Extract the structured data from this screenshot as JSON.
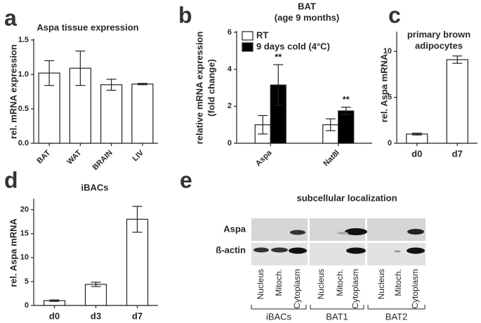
{
  "chart_data": [
    {
      "type": "bar",
      "panel": "a",
      "title": "Aspa tissue expression",
      "ylabel": "rel. mRNA expression",
      "categories": [
        "BAT",
        "WAT",
        "BRAIN",
        "LIV"
      ],
      "values": [
        1.02,
        1.09,
        0.85,
        0.86
      ],
      "errors": [
        0.18,
        0.25,
        0.08,
        0.01
      ],
      "color": "#ffffff",
      "ylim": [
        0,
        1.5
      ],
      "yticks": [
        {
          "value": 0,
          "label": "0.0"
        },
        0.5,
        {
          "value": 1,
          "label": "1.0"
        },
        1.5
      ]
    },
    {
      "type": "bar",
      "panel": "b",
      "title": [
        "BAT",
        "(age 9 months)"
      ],
      "ylabel": [
        "relative mRNA expression",
        "(fold change)"
      ],
      "categories": [
        "Aspa",
        "Nat8l"
      ],
      "series": [
        {
          "name": "RT",
          "color": "#ffffff",
          "values": [
            1.0,
            1.0
          ],
          "errors": [
            0.5,
            0.32
          ]
        },
        {
          "name": "9 days cold (4°C)",
          "color": "#000000",
          "values": [
            3.15,
            1.75
          ],
          "errors": [
            1.1,
            0.2
          ],
          "significance": [
            "**",
            "**"
          ]
        }
      ],
      "ylim": [
        0,
        6
      ],
      "yticks": [
        0,
        2,
        4,
        6
      ]
    },
    {
      "type": "bar",
      "panel": "c",
      "title": [
        "primary brown",
        "adipocytes"
      ],
      "ylabel": "rel. Aspa mRNA",
      "categories": [
        "d0",
        "d7"
      ],
      "values": [
        1.0,
        9.1
      ],
      "errors": [
        0.1,
        0.4
      ],
      "color": "#ffffff",
      "ylim": [
        0,
        12
      ],
      "yticks": [
        0,
        5,
        10
      ]
    },
    {
      "type": "bar",
      "panel": "d",
      "title": "iBACs",
      "ylabel": "rel. Aspa mRNA",
      "categories": [
        "d0",
        "d3",
        "d7"
      ],
      "values": [
        1.0,
        4.4,
        18.0
      ],
      "errors": [
        0.15,
        0.45,
        2.7
      ],
      "color": "#ffffff",
      "ylim": [
        0,
        22
      ],
      "yticks": [
        0,
        5,
        10,
        15,
        20
      ]
    }
  ],
  "blot": {
    "panel": "e",
    "title": "subcellular localization",
    "rows": [
      "Aspa",
      "ß-actin"
    ],
    "groups": [
      {
        "name": "iBACs",
        "lanes": [
          "Nucleus",
          "Mitoch.",
          "Cytoplasm"
        ]
      },
      {
        "name": "BAT1",
        "lanes": [
          "Nucleus",
          "Mitoch.",
          "Cytoplasm"
        ]
      },
      {
        "name": "BAT2",
        "lanes": [
          "Nucleus",
          "Mitoch.",
          "Cytoplasm"
        ]
      }
    ]
  }
}
